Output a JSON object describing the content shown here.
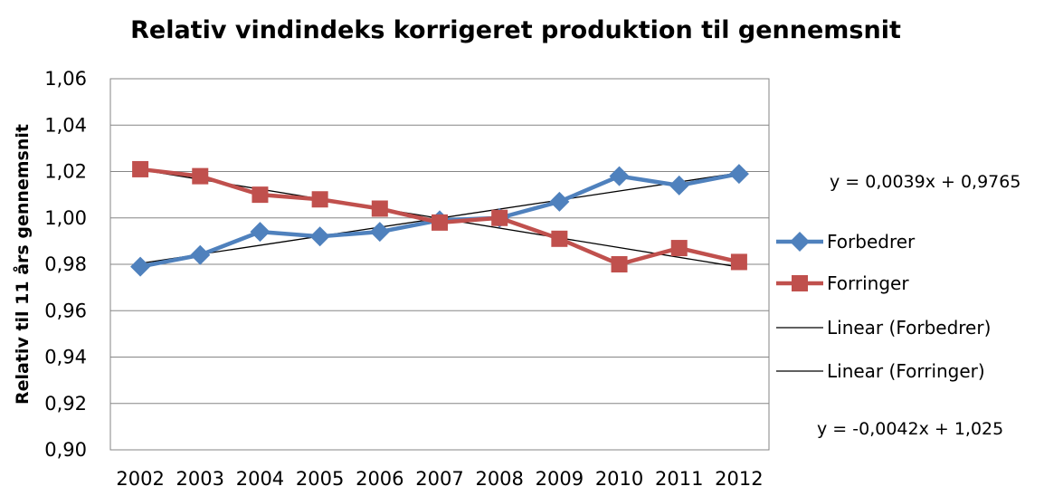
{
  "chart_data": {
    "type": "line",
    "title": "Relativ vindindeks korrigeret produktion til gennemsnit",
    "xlabel": "",
    "ylabel": "Relativ til 11 års gennemsnit",
    "categories": [
      "2002",
      "2003",
      "2004",
      "2005",
      "2006",
      "2007",
      "2008",
      "2009",
      "2010",
      "2011",
      "2012"
    ],
    "ylim": [
      0.9,
      1.06
    ],
    "yticks": [
      0.9,
      0.92,
      0.94,
      0.96,
      0.98,
      1.0,
      1.02,
      1.04,
      1.06
    ],
    "ytick_labels": [
      "0,90",
      "0,92",
      "0,94",
      "0,96",
      "0,98",
      "1,00",
      "1,02",
      "1,04",
      "1,06"
    ],
    "grid": true,
    "legend_position": "right",
    "series": [
      {
        "name": "Forbedrer",
        "values": [
          0.979,
          0.984,
          0.994,
          0.992,
          0.994,
          0.999,
          1.0,
          1.007,
          1.018,
          1.014,
          1.019
        ],
        "color": "#4F81BD",
        "marker": "diamond"
      },
      {
        "name": "Forringer",
        "values": [
          1.021,
          1.018,
          1.01,
          1.008,
          1.004,
          0.998,
          1.0,
          0.991,
          0.98,
          0.987,
          0.981
        ],
        "color": "#C0504D",
        "marker": "square"
      }
    ],
    "trendlines": [
      {
        "name": "Linear (Forbedrer)",
        "slope": 0.0039,
        "intercept": 0.9765,
        "equation": "y = 0,0039x + 0,9765",
        "color": "#000000"
      },
      {
        "name": "Linear (Forringer)",
        "slope": -0.0042,
        "intercept": 1.025,
        "equation": "y = -0,0042x + 1,025",
        "color": "#000000"
      }
    ]
  }
}
